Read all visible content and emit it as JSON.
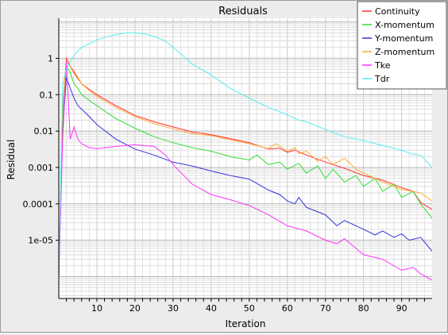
{
  "chart_data": {
    "type": "line",
    "title": "Residuals",
    "xlabel": "Iteration",
    "ylabel": "Residual",
    "xlim": [
      0,
      98
    ],
    "ylim_log10": [
      -6.6,
      1.1
    ],
    "yscale": "log",
    "grid": true,
    "legend_position": "top-right",
    "x_ticks": [
      10,
      20,
      30,
      40,
      50,
      60,
      70,
      80,
      90
    ],
    "y_ticks": [
      {
        "value": 1,
        "label": "1"
      },
      {
        "value": 0.1,
        "label": "0.1"
      },
      {
        "value": 0.01,
        "label": "0.01"
      },
      {
        "value": 0.001,
        "label": "0.001"
      },
      {
        "value": 0.0001,
        "label": "0.0001"
      },
      {
        "value": 1e-05,
        "label": "1e-05"
      }
    ],
    "series": [
      {
        "name": "Continuity",
        "color": "#ff3333",
        "x": [
          0,
          1,
          2,
          3,
          4,
          5,
          6,
          8,
          10,
          15,
          20,
          25,
          30,
          35,
          40,
          45,
          50,
          55,
          58,
          60,
          62,
          65,
          70,
          75,
          80,
          85,
          90,
          93,
          95,
          98
        ],
        "y": [
          1e-06,
          0.04,
          1.0,
          0.6,
          0.4,
          0.28,
          0.2,
          0.14,
          0.1,
          0.05,
          0.027,
          0.018,
          0.013,
          0.0095,
          0.008,
          0.0062,
          0.0048,
          0.0032,
          0.0034,
          0.0026,
          0.003,
          0.0022,
          0.0014,
          0.00095,
          0.0006,
          0.00045,
          0.00028,
          0.00022,
          0.00011,
          7e-05
        ]
      },
      {
        "name": "X-momentum",
        "color": "#33dd33",
        "x": [
          0,
          1,
          2,
          3,
          4,
          5,
          6,
          8,
          10,
          15,
          20,
          25,
          30,
          35,
          40,
          45,
          50,
          52,
          55,
          58,
          60,
          63,
          65,
          68,
          70,
          72,
          75,
          78,
          80,
          83,
          85,
          88,
          90,
          93,
          95,
          98
        ],
        "y": [
          1e-06,
          0.02,
          0.6,
          0.4,
          0.2,
          0.15,
          0.1,
          0.07,
          0.05,
          0.022,
          0.012,
          0.007,
          0.0048,
          0.0035,
          0.0028,
          0.002,
          0.0016,
          0.0022,
          0.0012,
          0.0014,
          0.0009,
          0.0013,
          0.0007,
          0.0011,
          0.0005,
          0.0009,
          0.0004,
          0.0006,
          0.0003,
          0.0005,
          0.00022,
          0.00035,
          0.00015,
          0.00022,
          0.0001,
          4e-05
        ]
      },
      {
        "name": "Y-momentum",
        "color": "#3333dd",
        "x": [
          0,
          1,
          2,
          3,
          4,
          5,
          6,
          8,
          10,
          15,
          20,
          25,
          30,
          35,
          40,
          45,
          50,
          55,
          58,
          60,
          62,
          63,
          65,
          70,
          73,
          75,
          78,
          80,
          83,
          85,
          88,
          90,
          92,
          95,
          98
        ],
        "y": [
          1e-06,
          0.01,
          0.3,
          0.15,
          0.08,
          0.05,
          0.04,
          0.025,
          0.015,
          0.006,
          0.0032,
          0.0022,
          0.0014,
          0.0011,
          0.0008,
          0.0006,
          0.00048,
          0.00024,
          0.00018,
          0.00012,
          0.0001,
          0.00015,
          8e-05,
          5e-05,
          2.5e-05,
          3.5e-05,
          2.5e-05,
          2e-05,
          1.4e-05,
          1.8e-05,
          1.2e-05,
          1.5e-05,
          1e-05,
          1.2e-05,
          5e-06
        ]
      },
      {
        "name": "Z-momentum",
        "color": "#ffaa33",
        "x": [
          0,
          1,
          2,
          3,
          4,
          5,
          6,
          8,
          10,
          15,
          20,
          25,
          30,
          35,
          40,
          45,
          50,
          55,
          57,
          60,
          62,
          63,
          65,
          68,
          70,
          72,
          75,
          78,
          80,
          85,
          90,
          95,
          98
        ],
        "y": [
          1e-06,
          0.05,
          0.8,
          0.6,
          0.45,
          0.3,
          0.2,
          0.13,
          0.09,
          0.045,
          0.025,
          0.016,
          0.0115,
          0.0085,
          0.0075,
          0.0058,
          0.0045,
          0.0033,
          0.0045,
          0.0028,
          0.0035,
          0.0024,
          0.0028,
          0.0015,
          0.002,
          0.0012,
          0.0018,
          0.0009,
          0.0007,
          0.0004,
          0.00025,
          0.0002,
          0.00012
        ]
      },
      {
        "name": "Tke",
        "color": "#ff33ff",
        "x": [
          0,
          1,
          2,
          3,
          4,
          5,
          6,
          8,
          10,
          15,
          20,
          25,
          28,
          30,
          35,
          40,
          45,
          50,
          55,
          60,
          65,
          70,
          73,
          75,
          78,
          80,
          85,
          90,
          93,
          95,
          98
        ],
        "y": [
          1e-06,
          0.005,
          0.8,
          0.006,
          0.013,
          0.006,
          0.0045,
          0.0035,
          0.0033,
          0.0038,
          0.0042,
          0.0038,
          0.0022,
          0.0012,
          0.00035,
          0.00018,
          0.00013,
          9e-05,
          5e-05,
          2.5e-05,
          1.8e-05,
          1e-05,
          8e-06,
          1.1e-05,
          6e-06,
          4e-06,
          3e-06,
          1.5e-06,
          1.8e-06,
          1.2e-06,
          8e-07
        ]
      },
      {
        "name": "Tdr",
        "color": "#55eeee",
        "x": [
          0,
          1,
          2,
          3,
          4,
          5,
          6,
          8,
          10,
          13,
          15,
          18,
          20,
          23,
          25,
          28,
          30,
          35,
          40,
          45,
          50,
          55,
          60,
          63,
          65,
          70,
          75,
          80,
          85,
          90,
          93,
          95,
          98
        ],
        "y": [
          1e-06,
          0.2,
          0.5,
          0.8,
          1.2,
          1.6,
          2.0,
          2.5,
          3.2,
          4.0,
          4.5,
          5.0,
          5.0,
          4.6,
          4.0,
          3.0,
          2.0,
          0.7,
          0.35,
          0.15,
          0.08,
          0.045,
          0.028,
          0.02,
          0.018,
          0.011,
          0.007,
          0.0055,
          0.004,
          0.003,
          0.0023,
          0.0022,
          0.001
        ]
      }
    ]
  }
}
